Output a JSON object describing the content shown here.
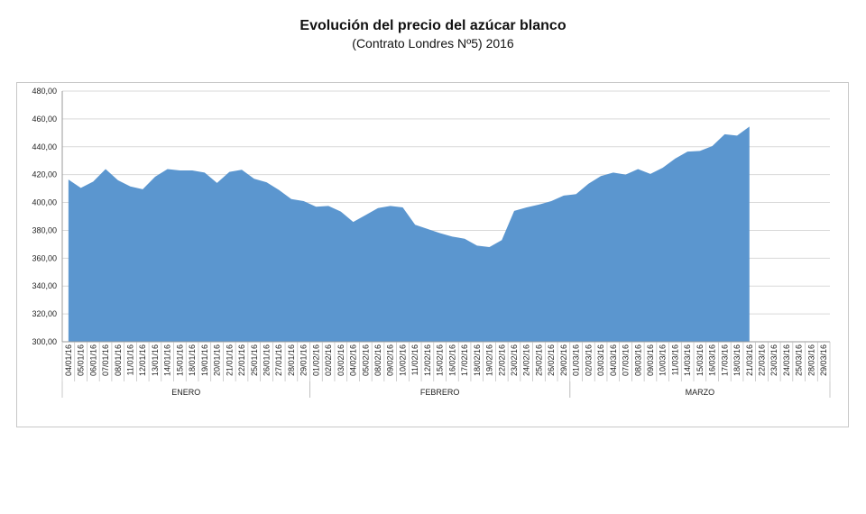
{
  "chart_data": {
    "type": "area",
    "title": "Evolución del precio del azúcar blanco",
    "subtitle": "(Contrato Londres Nº5) 2016",
    "ylim": [
      300,
      480
    ],
    "yticks": [
      "300,00",
      "320,00",
      "340,00",
      "360,00",
      "380,00",
      "400,00",
      "420,00",
      "440,00",
      "460,00",
      "480,00"
    ],
    "grid": true,
    "fill_color": "#5b96cf",
    "categories": [
      "04/01/16",
      "05/01/16",
      "06/01/16",
      "07/01/16",
      "08/01/16",
      "11/01/16",
      "12/01/16",
      "13/01/16",
      "14/01/16",
      "15/01/16",
      "18/01/16",
      "19/01/16",
      "20/01/16",
      "21/01/16",
      "22/01/16",
      "25/01/16",
      "26/01/16",
      "27/01/16",
      "28/01/16",
      "29/01/16",
      "01/02/16",
      "02/02/16",
      "03/02/16",
      "04/02/16",
      "05/02/16",
      "08/02/16",
      "09/02/16",
      "10/02/16",
      "11/02/16",
      "12/02/16",
      "15/02/16",
      "16/02/16",
      "17/02/16",
      "18/02/16",
      "19/02/16",
      "22/02/16",
      "23/02/16",
      "24/02/16",
      "25/02/16",
      "26/02/16",
      "29/02/16",
      "01/03/16",
      "02/03/16",
      "03/03/16",
      "04/03/16",
      "07/03/16",
      "08/03/16",
      "09/03/16",
      "10/03/16",
      "11/03/16",
      "14/03/16",
      "15/03/16",
      "16/03/16",
      "17/03/16",
      "18/03/16",
      "21/03/16",
      "22/03/16",
      "23/03/16",
      "24/03/16",
      "25/03/16",
      "28/03/16",
      "29/03/16"
    ],
    "values": [
      416.5,
      410.5,
      415,
      424,
      416,
      411.5,
      409.5,
      418.5,
      424,
      423,
      423,
      421.5,
      414,
      422,
      423.5,
      417,
      414.5,
      409,
      402.5,
      401,
      397,
      397.5,
      393.5,
      386,
      391,
      396,
      397.5,
      396.5,
      384,
      381,
      378,
      375.5,
      374,
      369,
      368,
      373,
      394,
      396.5,
      398.5,
      401,
      405,
      406,
      413.5,
      419,
      421.5,
      420,
      424,
      420.5,
      425,
      431.5,
      436.5,
      437,
      440.5,
      449,
      448,
      454.5,
      null,
      null,
      null,
      null,
      null,
      null
    ],
    "groups": [
      {
        "label": "ENERO",
        "start": 0,
        "end": 19
      },
      {
        "label": "FEBRERO",
        "start": 20,
        "end": 40
      },
      {
        "label": "MARZO",
        "start": 41,
        "end": 61
      }
    ]
  }
}
